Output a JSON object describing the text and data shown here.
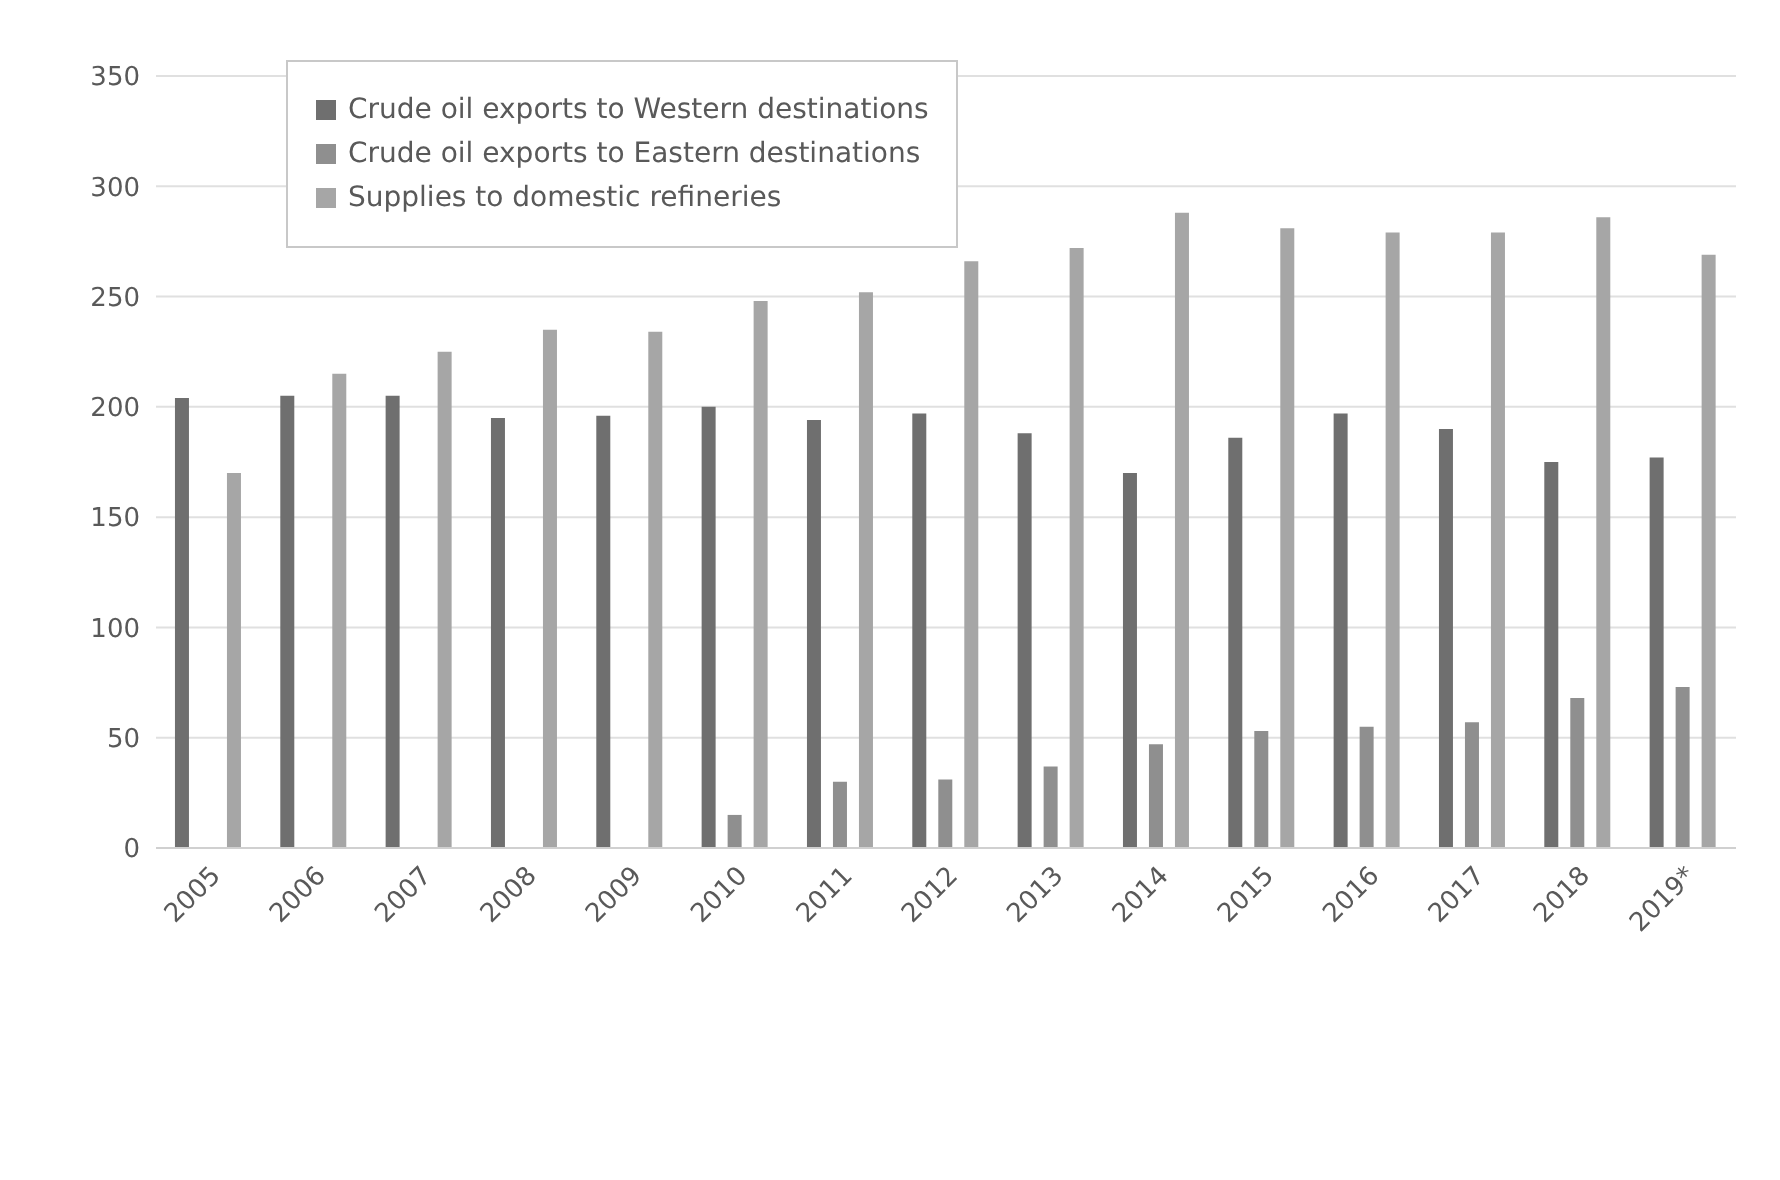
{
  "chart_data": {
    "type": "bar",
    "categories": [
      "2005",
      "2006",
      "2007",
      "2008",
      "2009",
      "2010",
      "2011",
      "2012",
      "2013",
      "2014",
      "2015",
      "2016",
      "2017",
      "2018",
      "2019*"
    ],
    "series": [
      {
        "name": "Crude oil exports to Western destinations",
        "color": "#6f6f6f",
        "values": [
          204,
          205,
          205,
          195,
          196,
          200,
          194,
          197,
          188,
          170,
          186,
          197,
          190,
          175,
          177
        ]
      },
      {
        "name": "Crude oil exports to Eastern destinations",
        "color": "#8f8f8f",
        "values": [
          null,
          null,
          null,
          null,
          null,
          15,
          30,
          31,
          37,
          47,
          53,
          55,
          57,
          68,
          73
        ]
      },
      {
        "name": "Supplies to domestic refineries",
        "color": "#a6a6a6",
        "values": [
          170,
          215,
          225,
          235,
          234,
          248,
          252,
          266,
          272,
          288,
          281,
          279,
          279,
          286,
          269
        ]
      }
    ],
    "ylim": [
      0,
      350
    ],
    "yticks": [
      0,
      50,
      100,
      150,
      200,
      250,
      300,
      350
    ],
    "grid": "y",
    "legend": "top left"
  }
}
